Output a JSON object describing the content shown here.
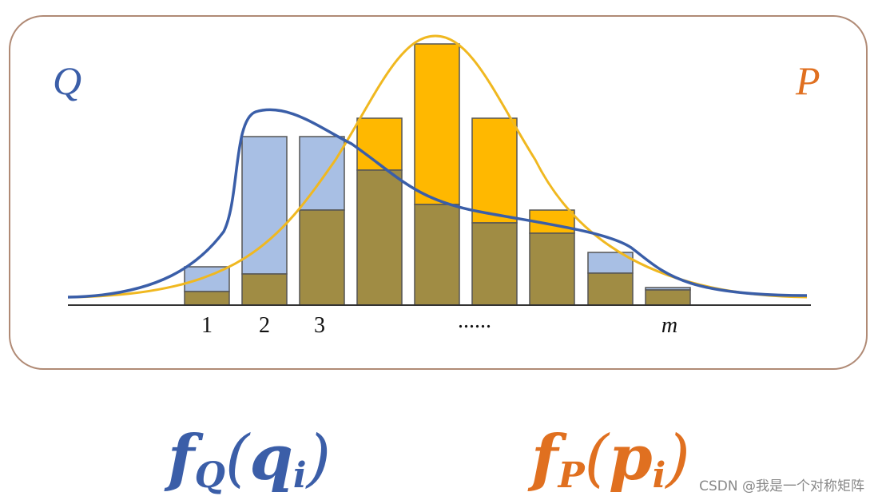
{
  "labels": {
    "q_dist": "Q",
    "p_dist": "P"
  },
  "bins": [
    "1",
    "2",
    "3",
    "......",
    "m"
  ],
  "left_formula": {
    "func": "f",
    "func_sub": "Q",
    "open": "(",
    "arg": "q",
    "arg_sub": "i",
    "close": ")"
  },
  "right_formula": {
    "func": "f",
    "func_sub": "P",
    "open": "(",
    "arg": "p",
    "arg_sub": "i",
    "close": ")"
  },
  "watermark": "CSDN @我是一个对称矩阵"
}
